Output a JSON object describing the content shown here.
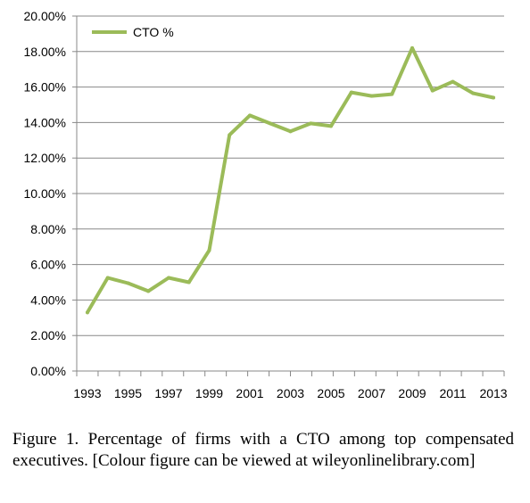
{
  "chart_data": {
    "type": "line",
    "title": "",
    "xlabel": "",
    "ylabel": "",
    "x": [
      1993,
      1994,
      1995,
      1996,
      1997,
      1998,
      1999,
      2000,
      2001,
      2002,
      2003,
      2004,
      2005,
      2006,
      2007,
      2008,
      2009,
      2010,
      2011,
      2012,
      2013
    ],
    "series": [
      {
        "name": "CTO %",
        "color": "#9bbb59",
        "values": [
          3.3,
          5.25,
          4.95,
          4.5,
          5.25,
          5.0,
          6.8,
          13.3,
          14.4,
          13.95,
          13.5,
          13.95,
          13.8,
          15.7,
          15.5,
          15.6,
          18.2,
          15.8,
          16.3,
          15.65,
          15.4
        ]
      }
    ],
    "ylim": [
      0,
      20
    ],
    "y_ticks": [
      "0.00%",
      "2.00%",
      "4.00%",
      "6.00%",
      "8.00%",
      "10.00%",
      "12.00%",
      "14.00%",
      "16.00%",
      "18.00%",
      "20.00%"
    ],
    "x_tick_labels": [
      "1993",
      "1995",
      "1997",
      "1999",
      "2001",
      "2003",
      "2005",
      "2007",
      "2009",
      "2011",
      "2013"
    ],
    "grid": true,
    "legend_position": "top-left"
  },
  "caption": "Figure 1. Percentage of firms with a CTO among top compensated executives. [Colour figure can be viewed at wileyonlinelibrary.com]"
}
